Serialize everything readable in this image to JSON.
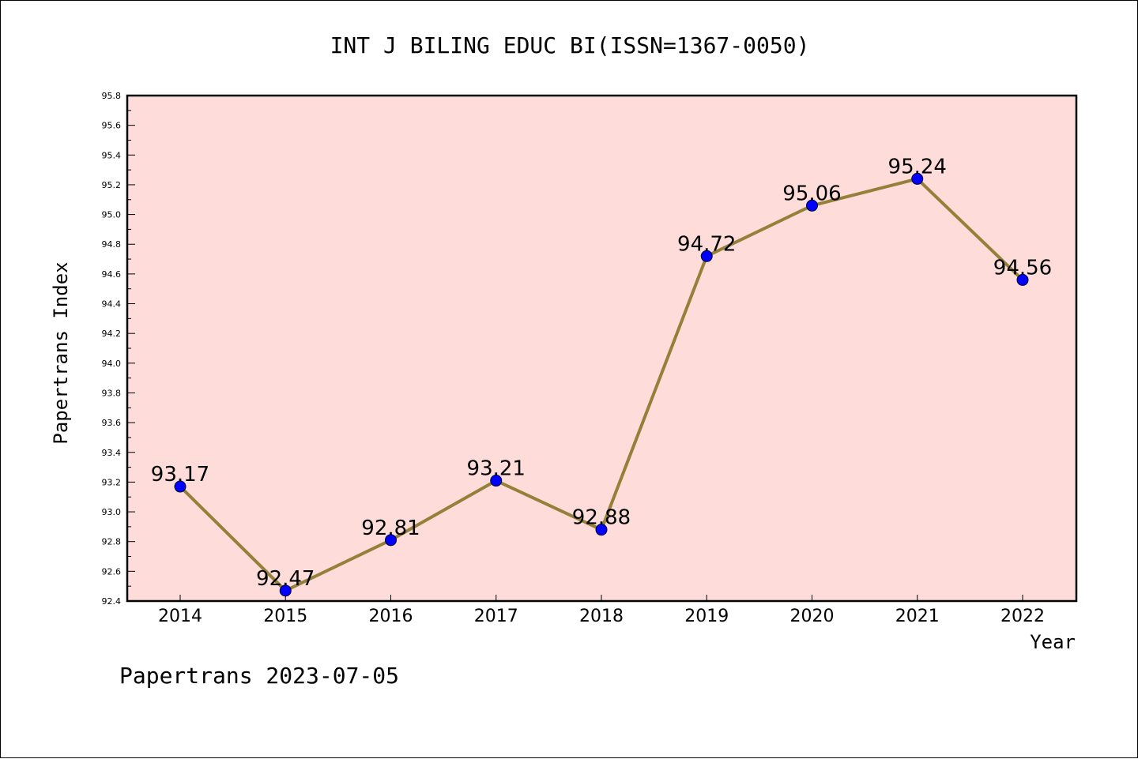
{
  "colors": {
    "plot_background": "#fddcda",
    "line": "#95803a",
    "marker": "#0000ff",
    "frame": "#000000"
  },
  "footer": {
    "text": "Papertrans 2023-07-05"
  },
  "chart_data": {
    "type": "line",
    "title": "INT J BILING EDUC BI(ISSN=1367-0050)",
    "xlabel": "Year",
    "ylabel": "Papertrans Index",
    "ylim": [
      92.4,
      95.8
    ],
    "ytick_step": 0.2,
    "yticks": [
      "92.4",
      "92.6",
      "92.8",
      "93.0",
      "93.2",
      "93.4",
      "93.6",
      "93.8",
      "94.0",
      "94.2",
      "94.4",
      "94.6",
      "94.8",
      "95.0",
      "95.2",
      "95.4",
      "95.6",
      "95.8"
    ],
    "categories": [
      "2014",
      "2015",
      "2016",
      "2017",
      "2018",
      "2019",
      "2020",
      "2021",
      "2022"
    ],
    "values": [
      93.17,
      92.47,
      92.81,
      93.21,
      92.88,
      94.72,
      95.06,
      95.24,
      94.56
    ],
    "data_labels": [
      "93.17",
      "92.47",
      "92.81",
      "93.21",
      "92.88",
      "94.72",
      "95.06",
      "95.24",
      "94.56"
    ],
    "grid": false,
    "legend": "none"
  }
}
